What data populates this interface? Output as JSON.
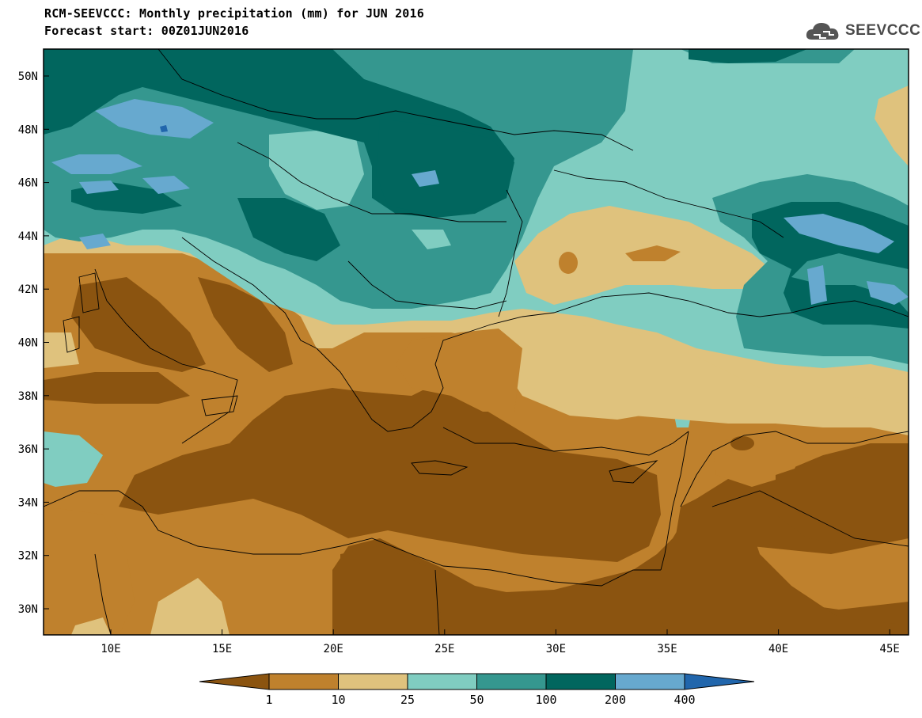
{
  "header": {
    "title_line1": "RCM-SEEVCCC: Monthly precipitation (mm) for JUN 2016",
    "title_line2": "Forecast start: 00Z01JUN2016"
  },
  "logo": {
    "text": "SEEVCCC",
    "icon": "cloud-icon"
  },
  "map": {
    "lat_labels": [
      "50N",
      "48N",
      "46N",
      "44N",
      "42N",
      "40N",
      "38N",
      "36N",
      "34N",
      "32N",
      "30N"
    ],
    "lon_labels": [
      "10E",
      "15E",
      "20E",
      "25E",
      "30E",
      "35E",
      "40E",
      "45E"
    ],
    "background_class_color": "#8b5410"
  },
  "colorbar": {
    "labels": [
      "1",
      "10",
      "25",
      "50",
      "100",
      "200",
      "400"
    ],
    "colors": [
      "#8b5410",
      "#bf812d",
      "#dfc27d",
      "#80cdc1",
      "#35978f",
      "#01665e",
      "#67a9cf",
      "#2166ac"
    ]
  }
}
